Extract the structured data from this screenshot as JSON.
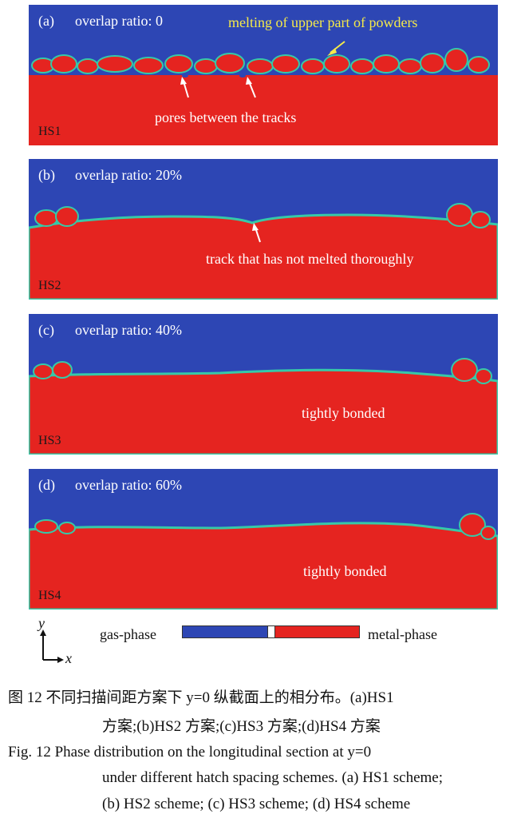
{
  "panels": [
    {
      "label": "(a)",
      "title": "overlap ratio: 0",
      "scheme": "HS1",
      "annotations": [
        "melting of upper part of powders",
        "pores between the tracks"
      ]
    },
    {
      "label": "(b)",
      "title": "overlap ratio: 20%",
      "scheme": "HS2",
      "annotations": [
        "track that has not melted thoroughly"
      ]
    },
    {
      "label": "(c)",
      "title": "overlap ratio: 40%",
      "scheme": "HS3",
      "annotations": [
        "tightly bonded"
      ]
    },
    {
      "label": "(d)",
      "title": "overlap ratio: 60%",
      "scheme": "HS4",
      "annotations": [
        "tightly bonded"
      ]
    }
  ],
  "axes": {
    "y": "y",
    "x": "x"
  },
  "legend": {
    "left": "gas-phase",
    "right": "metal-phase"
  },
  "colors": {
    "gas": "#2d46b4",
    "metal": "#e52420",
    "interface": "#36c9a8",
    "highlight": "#f4e94a"
  },
  "caption": {
    "cn_line1": "图 12   不同扫描间距方案下 y=0 纵截面上的相分布。(a)HS1",
    "cn_line2": "方案;(b)HS2 方案;(c)HS3 方案;(d)HS4 方案",
    "en_line1": "Fig. 12   Phase distribution on the longitudinal section at y=0",
    "en_line2": "under different hatch spacing schemes. (a) HS1 scheme;",
    "en_line3": "(b) HS2 scheme; (c) HS3 scheme; (d) HS4 scheme"
  }
}
